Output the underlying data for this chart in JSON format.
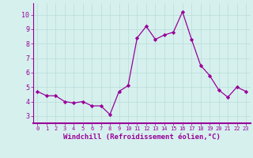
{
  "x": [
    0,
    1,
    2,
    3,
    4,
    5,
    6,
    7,
    8,
    9,
    10,
    11,
    12,
    13,
    14,
    15,
    16,
    17,
    18,
    19,
    20,
    21,
    22,
    23
  ],
  "y": [
    4.7,
    4.4,
    4.4,
    4.0,
    3.9,
    4.0,
    3.7,
    3.7,
    3.1,
    4.7,
    5.1,
    8.4,
    9.2,
    8.3,
    8.6,
    8.8,
    10.2,
    8.3,
    6.5,
    5.8,
    4.8,
    4.3,
    5.0,
    4.7
  ],
  "line_color": "#990099",
  "marker": "D",
  "marker_size": 2.2,
  "bg_color": "#d6f0ee",
  "grid_color": "#b8dcd8",
  "xlabel": "Windchill (Refroidissement éolien,°C)",
  "xlabel_color": "#990099",
  "tick_color": "#990099",
  "ylim": [
    2.5,
    10.8
  ],
  "xlim": [
    -0.5,
    23.5
  ],
  "yticks": [
    3,
    4,
    5,
    6,
    7,
    8,
    9,
    10
  ],
  "xticks": [
    0,
    1,
    2,
    3,
    4,
    5,
    6,
    7,
    8,
    9,
    10,
    11,
    12,
    13,
    14,
    15,
    16,
    17,
    18,
    19,
    20,
    21,
    22,
    23
  ],
  "spine_color": "#990099",
  "spine_bottom_color": "#990099",
  "font_size_x": 5.0,
  "font_size_y": 6.0,
  "font_size_xlabel": 6.5,
  "linewidth": 0.9
}
